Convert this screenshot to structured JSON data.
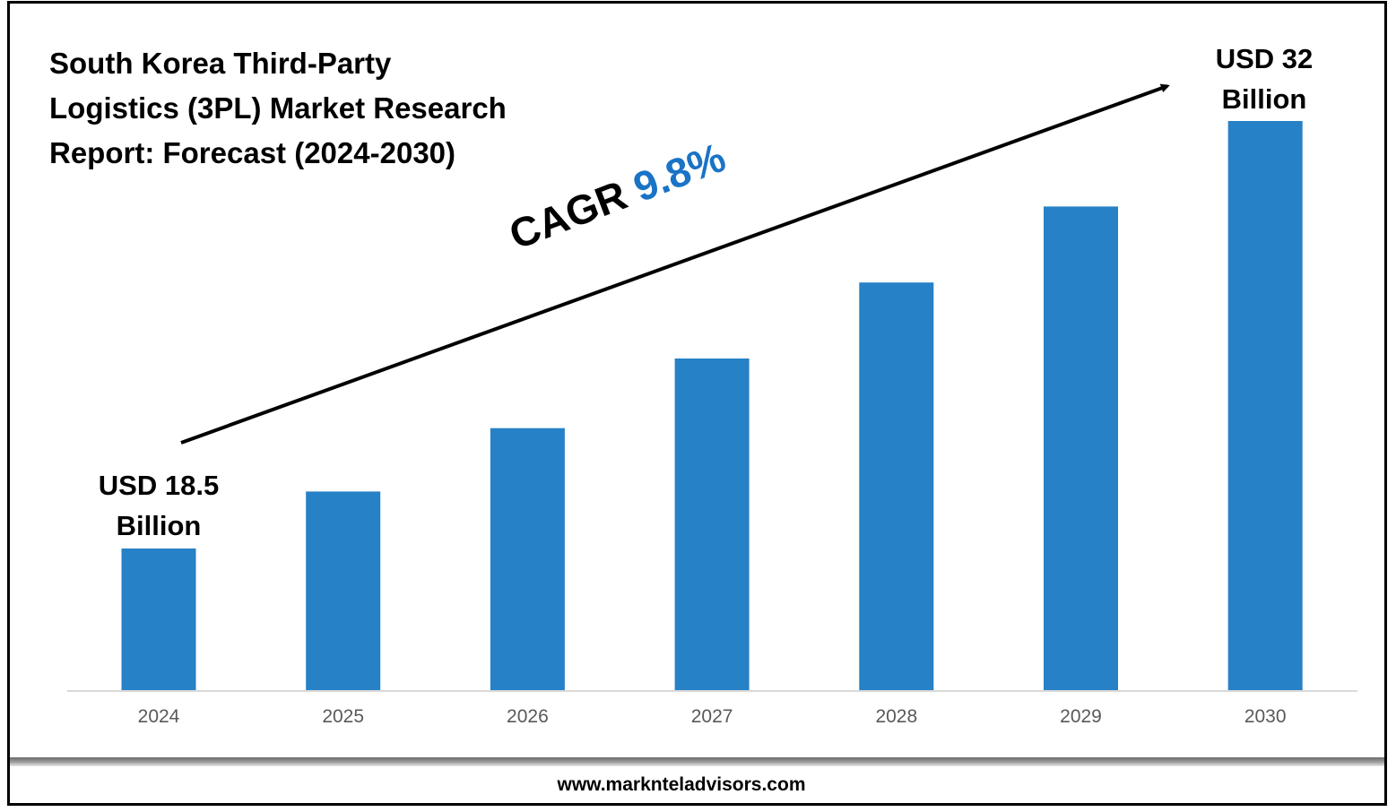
{
  "title_lines": [
    "South Korea Third-Party",
    "Logistics (3PL) Market Research",
    "Report: Forecast (2024-2030)"
  ],
  "cagr": {
    "label": "CAGR",
    "value": "9.8%"
  },
  "start_label": {
    "line1": "USD 18.5",
    "line2": "Billion"
  },
  "end_label": {
    "line1": "USD 32",
    "line2": "Billion"
  },
  "footer": "www.marknteladvisors.com",
  "colors": {
    "bar": "#2781c6",
    "axis": "#d9d9d9",
    "tick_text": "#595959",
    "cagr_value": "#1a73c6"
  },
  "chart_data": {
    "type": "bar",
    "title": "South Korea Third-Party Logistics (3PL) Market Research Report: Forecast (2024-2030)",
    "categories": [
      "2024",
      "2025",
      "2026",
      "2027",
      "2028",
      "2029",
      "2030"
    ],
    "values": [
      18.5,
      20.3,
      22.3,
      24.5,
      26.9,
      29.3,
      32
    ],
    "unit": "USD Billion",
    "xlabel": "",
    "ylabel": "",
    "ylim": [
      0,
      32
    ],
    "grid": false,
    "legend": "none"
  }
}
